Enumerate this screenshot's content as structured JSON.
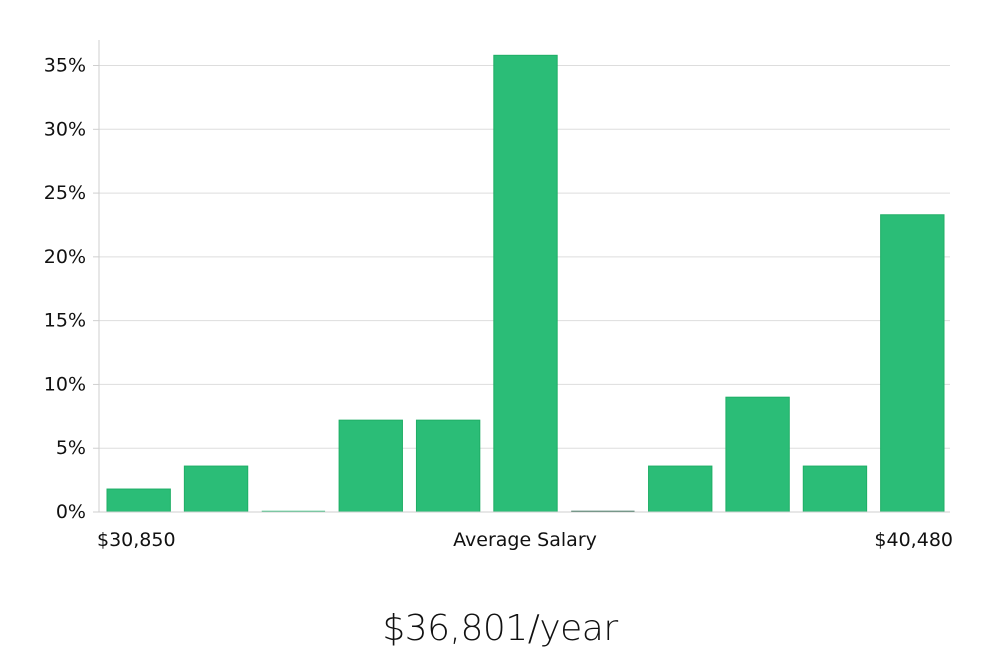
{
  "salary_text": "$36,801/year",
  "chart_data": {
    "type": "bar",
    "x_min_label": "$30,850",
    "x_max_label": "$40,480",
    "xlabel": "Average Salary",
    "ylabel": "",
    "ylim": [
      0,
      37
    ],
    "yticks": [
      0,
      5,
      10,
      15,
      20,
      25,
      30,
      35
    ],
    "ytick_labels": [
      "0%",
      "5%",
      "10%",
      "15%",
      "20%",
      "25%",
      "30%",
      "35%"
    ],
    "values": [
      1.8,
      3.6,
      0,
      7.2,
      7.2,
      35.8,
      0,
      3.6,
      9.0,
      3.6,
      23.3
    ],
    "grid": true,
    "colors": {
      "bar": "#2bbd77",
      "bar_border": "#1fae66",
      "grid": "#dddddd",
      "axis": "#cfcfcf",
      "empty_bar_line": "#1f5f43"
    }
  }
}
